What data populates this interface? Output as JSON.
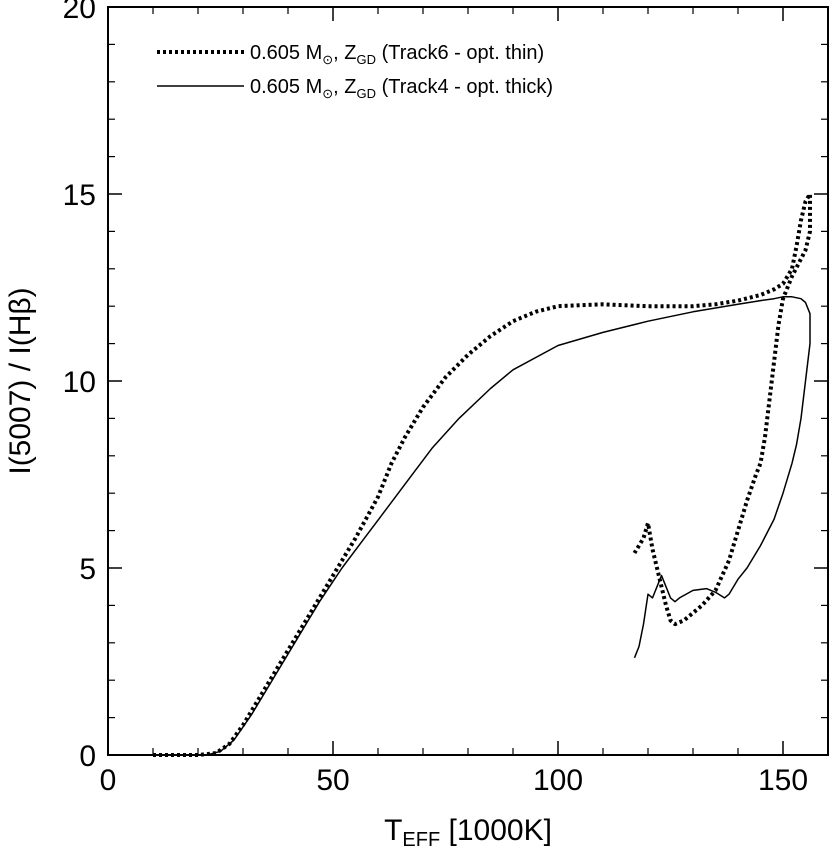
{
  "chart_data": {
    "type": "line",
    "title": "",
    "xlabel": "T_EFF [1000K]",
    "xlabel_main": "T",
    "xlabel_sub": "EFF",
    "xlabel_rest": " [1000K]",
    "ylabel": "I(5007) / I(Hβ)",
    "xlim": [
      0,
      160
    ],
    "ylim": [
      0,
      20
    ],
    "xticks": [
      0,
      50,
      100,
      150
    ],
    "xtick_labels": [
      "0",
      "50",
      "100",
      "150"
    ],
    "yticks": [
      0,
      5,
      10,
      15,
      20
    ],
    "ytick_labels": [
      "0",
      "5",
      "10",
      "15",
      "20"
    ],
    "grid": false,
    "legend_position": "top-left",
    "series": [
      {
        "name": "0.605 M☉, Z_GD (Track6 - opt. thin)",
        "legend_label": {
          "mass": "0.605 M",
          "sun_symbol": "⊙",
          "z": ", Z",
          "z_sub": "GD",
          "track": " (Track6 - opt. thin)"
        },
        "style": "dotted",
        "x": [
          10,
          20,
          24,
          27,
          30,
          35,
          40,
          45,
          50,
          55,
          60,
          63,
          66,
          70,
          75,
          80,
          85,
          90,
          95,
          100,
          110,
          120,
          130,
          135,
          140,
          145,
          148,
          150,
          152,
          153,
          154,
          155,
          156,
          156,
          155,
          152,
          150,
          149,
          148,
          147,
          146,
          145,
          144,
          142,
          140,
          138,
          135,
          132,
          130,
          128,
          126,
          125,
          124,
          123,
          122,
          121,
          120,
          119,
          118,
          117
        ],
        "y": [
          0,
          0,
          0.05,
          0.3,
          0.8,
          1.8,
          2.8,
          3.8,
          4.8,
          5.8,
          6.9,
          7.8,
          8.5,
          9.3,
          10.1,
          10.7,
          11.2,
          11.6,
          11.85,
          12.0,
          12.05,
          12.0,
          12.0,
          12.05,
          12.15,
          12.3,
          12.45,
          12.6,
          13.0,
          13.6,
          14.3,
          14.8,
          15.0,
          14.0,
          13.5,
          12.8,
          12.2,
          11.5,
          10.5,
          9.5,
          8.5,
          7.8,
          7.5,
          6.8,
          6.0,
          5.2,
          4.4,
          4.0,
          3.8,
          3.6,
          3.5,
          3.6,
          4.0,
          4.5,
          5.0,
          5.5,
          6.2,
          5.8,
          5.6,
          5.4
        ]
      },
      {
        "name": "0.605 M☉, Z_GD (Track4 - opt. thick)",
        "legend_label": {
          "mass": "0.605 M",
          "sun_symbol": "⊙",
          "z": ", Z",
          "z_sub": "GD",
          "track": " (Track4 - opt. thick)"
        },
        "style": "solid",
        "x": [
          22,
          25,
          28,
          32,
          37,
          42,
          47,
          52,
          57,
          62,
          67,
          72,
          78,
          85,
          90,
          100,
          110,
          120,
          130,
          140,
          145,
          148,
          150,
          152,
          154,
          155,
          156,
          156,
          155,
          154,
          153,
          152,
          150,
          148,
          145,
          142,
          140,
          139,
          138,
          137,
          135,
          133,
          130,
          127,
          126,
          125,
          124,
          123,
          122,
          121,
          120,
          119,
          118,
          117
        ],
        "y": [
          0,
          0.1,
          0.4,
          1.1,
          2.1,
          3.1,
          4.1,
          5.0,
          5.8,
          6.6,
          7.4,
          8.2,
          9.0,
          9.8,
          10.3,
          10.95,
          11.3,
          11.6,
          11.85,
          12.05,
          12.15,
          12.2,
          12.25,
          12.25,
          12.2,
          12.1,
          11.8,
          11.0,
          10.0,
          9.0,
          8.3,
          7.8,
          7.0,
          6.3,
          5.6,
          5.0,
          4.7,
          4.5,
          4.3,
          4.2,
          4.35,
          4.45,
          4.4,
          4.2,
          4.1,
          4.2,
          4.5,
          4.8,
          4.5,
          4.2,
          4.3,
          3.5,
          2.9,
          2.6
        ]
      }
    ]
  }
}
